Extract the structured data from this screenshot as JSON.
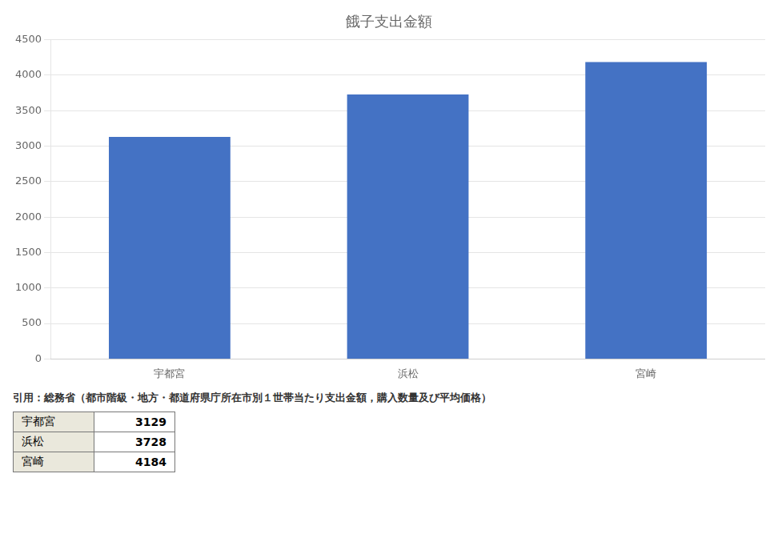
{
  "chart_data": {
    "type": "bar",
    "title": "餓子支出金額",
    "categories": [
      "宇都宮",
      "浜松",
      "宮崎"
    ],
    "values": [
      3129,
      3728,
      4184
    ],
    "color": "#4472C4",
    "ylim": [
      0,
      4500
    ],
    "yticks": [
      0,
      500,
      1000,
      1500,
      2000,
      2500,
      3000,
      3500,
      4000,
      4500
    ],
    "grid": true,
    "annotations": [
      "引用：総務省（都市階級・地方・都道府県庁所在市別１世帯当たり支出金額，購入数量及び平均価格）"
    ]
  }
}
